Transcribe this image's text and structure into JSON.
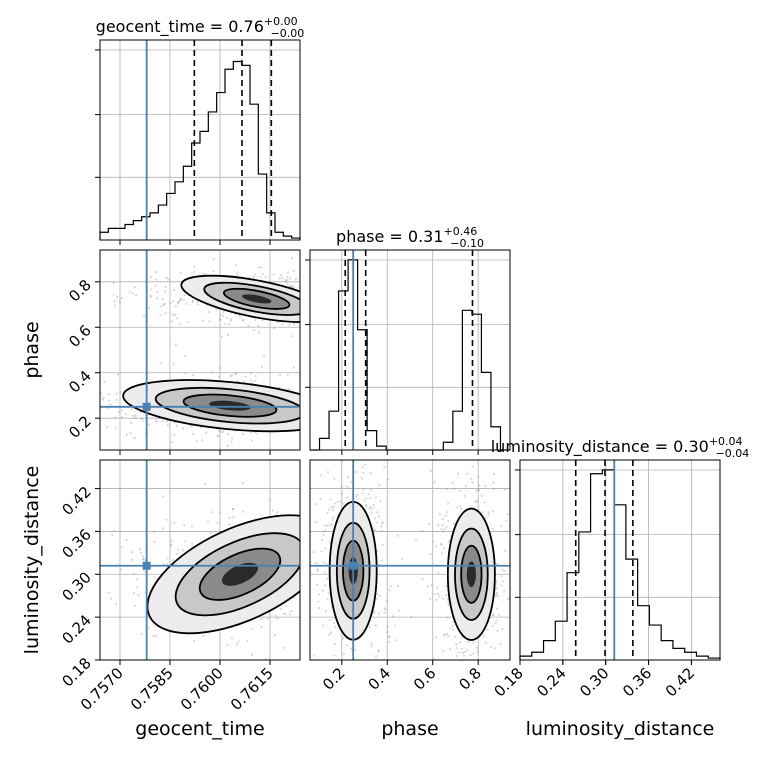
{
  "chart_data": {
    "type": "corner",
    "parameters": [
      "geocent_time",
      "phase",
      "luminosity_distance"
    ],
    "titles": {
      "geocent_time": {
        "prefix": "geocent_time = 0.76",
        "sup": "+0.00",
        "sub": "−0.00"
      },
      "phase": {
        "prefix": "phase = 0.31",
        "sup": "+0.46",
        "sub": "−0.10"
      },
      "luminosity_distance": {
        "prefix": "luminosity_distance = 0.30",
        "sup": "+0.04",
        "sub": "−0.04"
      }
    },
    "axis_labels": {
      "geocent_time": "geocent_time",
      "phase": "phase",
      "luminosity_distance": "luminosity_distance"
    },
    "ranges": {
      "geocent_time": [
        0.7564,
        0.7624
      ],
      "phase": [
        0.06,
        0.94
      ],
      "luminosity_distance": [
        0.18,
        0.46
      ]
    },
    "ticks": {
      "geocent_time": [
        "0.7570",
        "0.7585",
        "0.7600",
        "0.7615"
      ],
      "phase": [
        "0.2",
        "0.4",
        "0.6",
        "0.8"
      ],
      "luminosity_distance": [
        "0.18",
        "0.24",
        "0.30",
        "0.36",
        "0.42"
      ]
    },
    "truths": {
      "geocent_time": 0.7578,
      "phase": 0.25,
      "luminosity_distance": 0.312
    },
    "quantiles": {
      "geocent_time": [
        0.75923,
        0.76066,
        0.76154
      ],
      "phase": [
        0.215,
        0.305,
        0.775
      ],
      "luminosity_distance": [
        0.258,
        0.299,
        0.338
      ]
    },
    "histograms": {
      "geocent_time": {
        "edges_from": 0.7564,
        "edges_to": 0.7624,
        "counts": [
          0.04,
          0.06,
          0.06,
          0.08,
          0.1,
          0.12,
          0.14,
          0.18,
          0.24,
          0.3,
          0.38,
          0.5,
          0.56,
          0.66,
          0.76,
          0.88,
          0.92,
          0.9,
          0.7,
          0.34,
          0.14,
          0.04,
          0.02,
          0.01
        ]
      },
      "phase": {
        "edges_from": 0.06,
        "edges_to": 0.94,
        "counts": [
          0.0,
          0.06,
          0.2,
          0.82,
          0.98,
          0.62,
          0.1,
          0.02,
          0.0,
          0.0,
          0.0,
          0.0,
          0.0,
          0.0,
          0.04,
          0.2,
          0.72,
          0.7,
          0.4,
          0.12,
          0.0
        ]
      },
      "luminosity_distance": {
        "edges_from": 0.18,
        "edges_to": 0.46,
        "counts": [
          0.02,
          0.04,
          0.1,
          0.2,
          0.45,
          0.66,
          0.96,
          0.98,
          0.8,
          0.52,
          0.28,
          0.18,
          0.1,
          0.06,
          0.04,
          0.02,
          0.01
        ]
      }
    },
    "contours_2d": [
      {
        "x": "geocent_time",
        "y": "phase",
        "modes": [
          {
            "cx": 0.7611,
            "cy": 0.725,
            "sx": 0.001,
            "sy": 0.035,
            "tilt": -20
          },
          {
            "cx": 0.7603,
            "cy": 0.255,
            "sx": 0.0014,
            "sy": 0.045,
            "tilt": -10
          }
        ]
      },
      {
        "x": "geocent_time",
        "y": "luminosity_distance",
        "modes": [
          {
            "cx": 0.7606,
            "cy": 0.3,
            "sx": 0.0013,
            "sy": 0.028,
            "tilt": 45
          }
        ]
      },
      {
        "x": "phase",
        "y": "luminosity_distance",
        "modes": [
          {
            "cx": 0.25,
            "cy": 0.305,
            "sx": 0.045,
            "sy": 0.042,
            "tilt": 0
          },
          {
            "cx": 0.77,
            "cy": 0.3,
            "sx": 0.045,
            "sy": 0.04,
            "tilt": 0
          }
        ]
      }
    ],
    "grid": true
  }
}
